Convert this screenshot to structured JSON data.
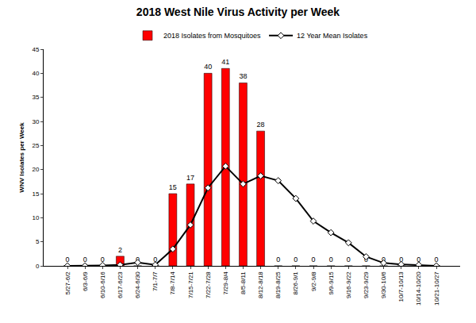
{
  "chart_data": {
    "type": "bar",
    "title": "2018 West Nile Virus Activity per Week",
    "y_label": "WNV Isolates per Week",
    "categories": [
      "5/27-6/2",
      "6/3-6/9",
      "6/10-6/16",
      "6/17-6/23",
      "6/24-6/30",
      "7/1-7/7",
      "7/8-7/14",
      "7/15-7/21",
      "7/22-7/28",
      "7/29-8/4",
      "8/5-8/11",
      "8/12-8/18",
      "8/19-8/25",
      "8/26-9/1",
      "9/2-9/8",
      "9/9-9/15",
      "9/16-9/22",
      "9/23-9/29",
      "9/30-10/6",
      "10/7-10/13",
      "10/14-10/20",
      "10/21-10/27"
    ],
    "series": [
      {
        "name": "2018 Isolates from Mosquitoes",
        "type": "bar",
        "color": "#ff0000",
        "data_labels": true,
        "values": [
          0,
          0,
          0,
          2,
          0,
          0,
          15,
          17,
          40,
          41,
          38,
          28,
          0,
          0,
          0,
          0,
          0,
          0,
          0,
          0,
          0,
          0
        ]
      },
      {
        "name": "12 Year Mean Isolates",
        "type": "line",
        "color": "#000000",
        "marker": "diamond",
        "line_style": "solid",
        "values": [
          0,
          0,
          0.1,
          0.2,
          0.7,
          0.2,
          3.5,
          8.5,
          16.2,
          20.7,
          17,
          18.7,
          17.7,
          14,
          9.3,
          6.9,
          4.8,
          1.9,
          0.6,
          0.3,
          0.2,
          0
        ]
      }
    ],
    "ylim": [
      0,
      45
    ],
    "yticks": [
      0,
      5,
      10,
      15,
      20,
      25,
      30,
      35,
      40,
      45
    ],
    "grid": false,
    "legend": "top"
  }
}
